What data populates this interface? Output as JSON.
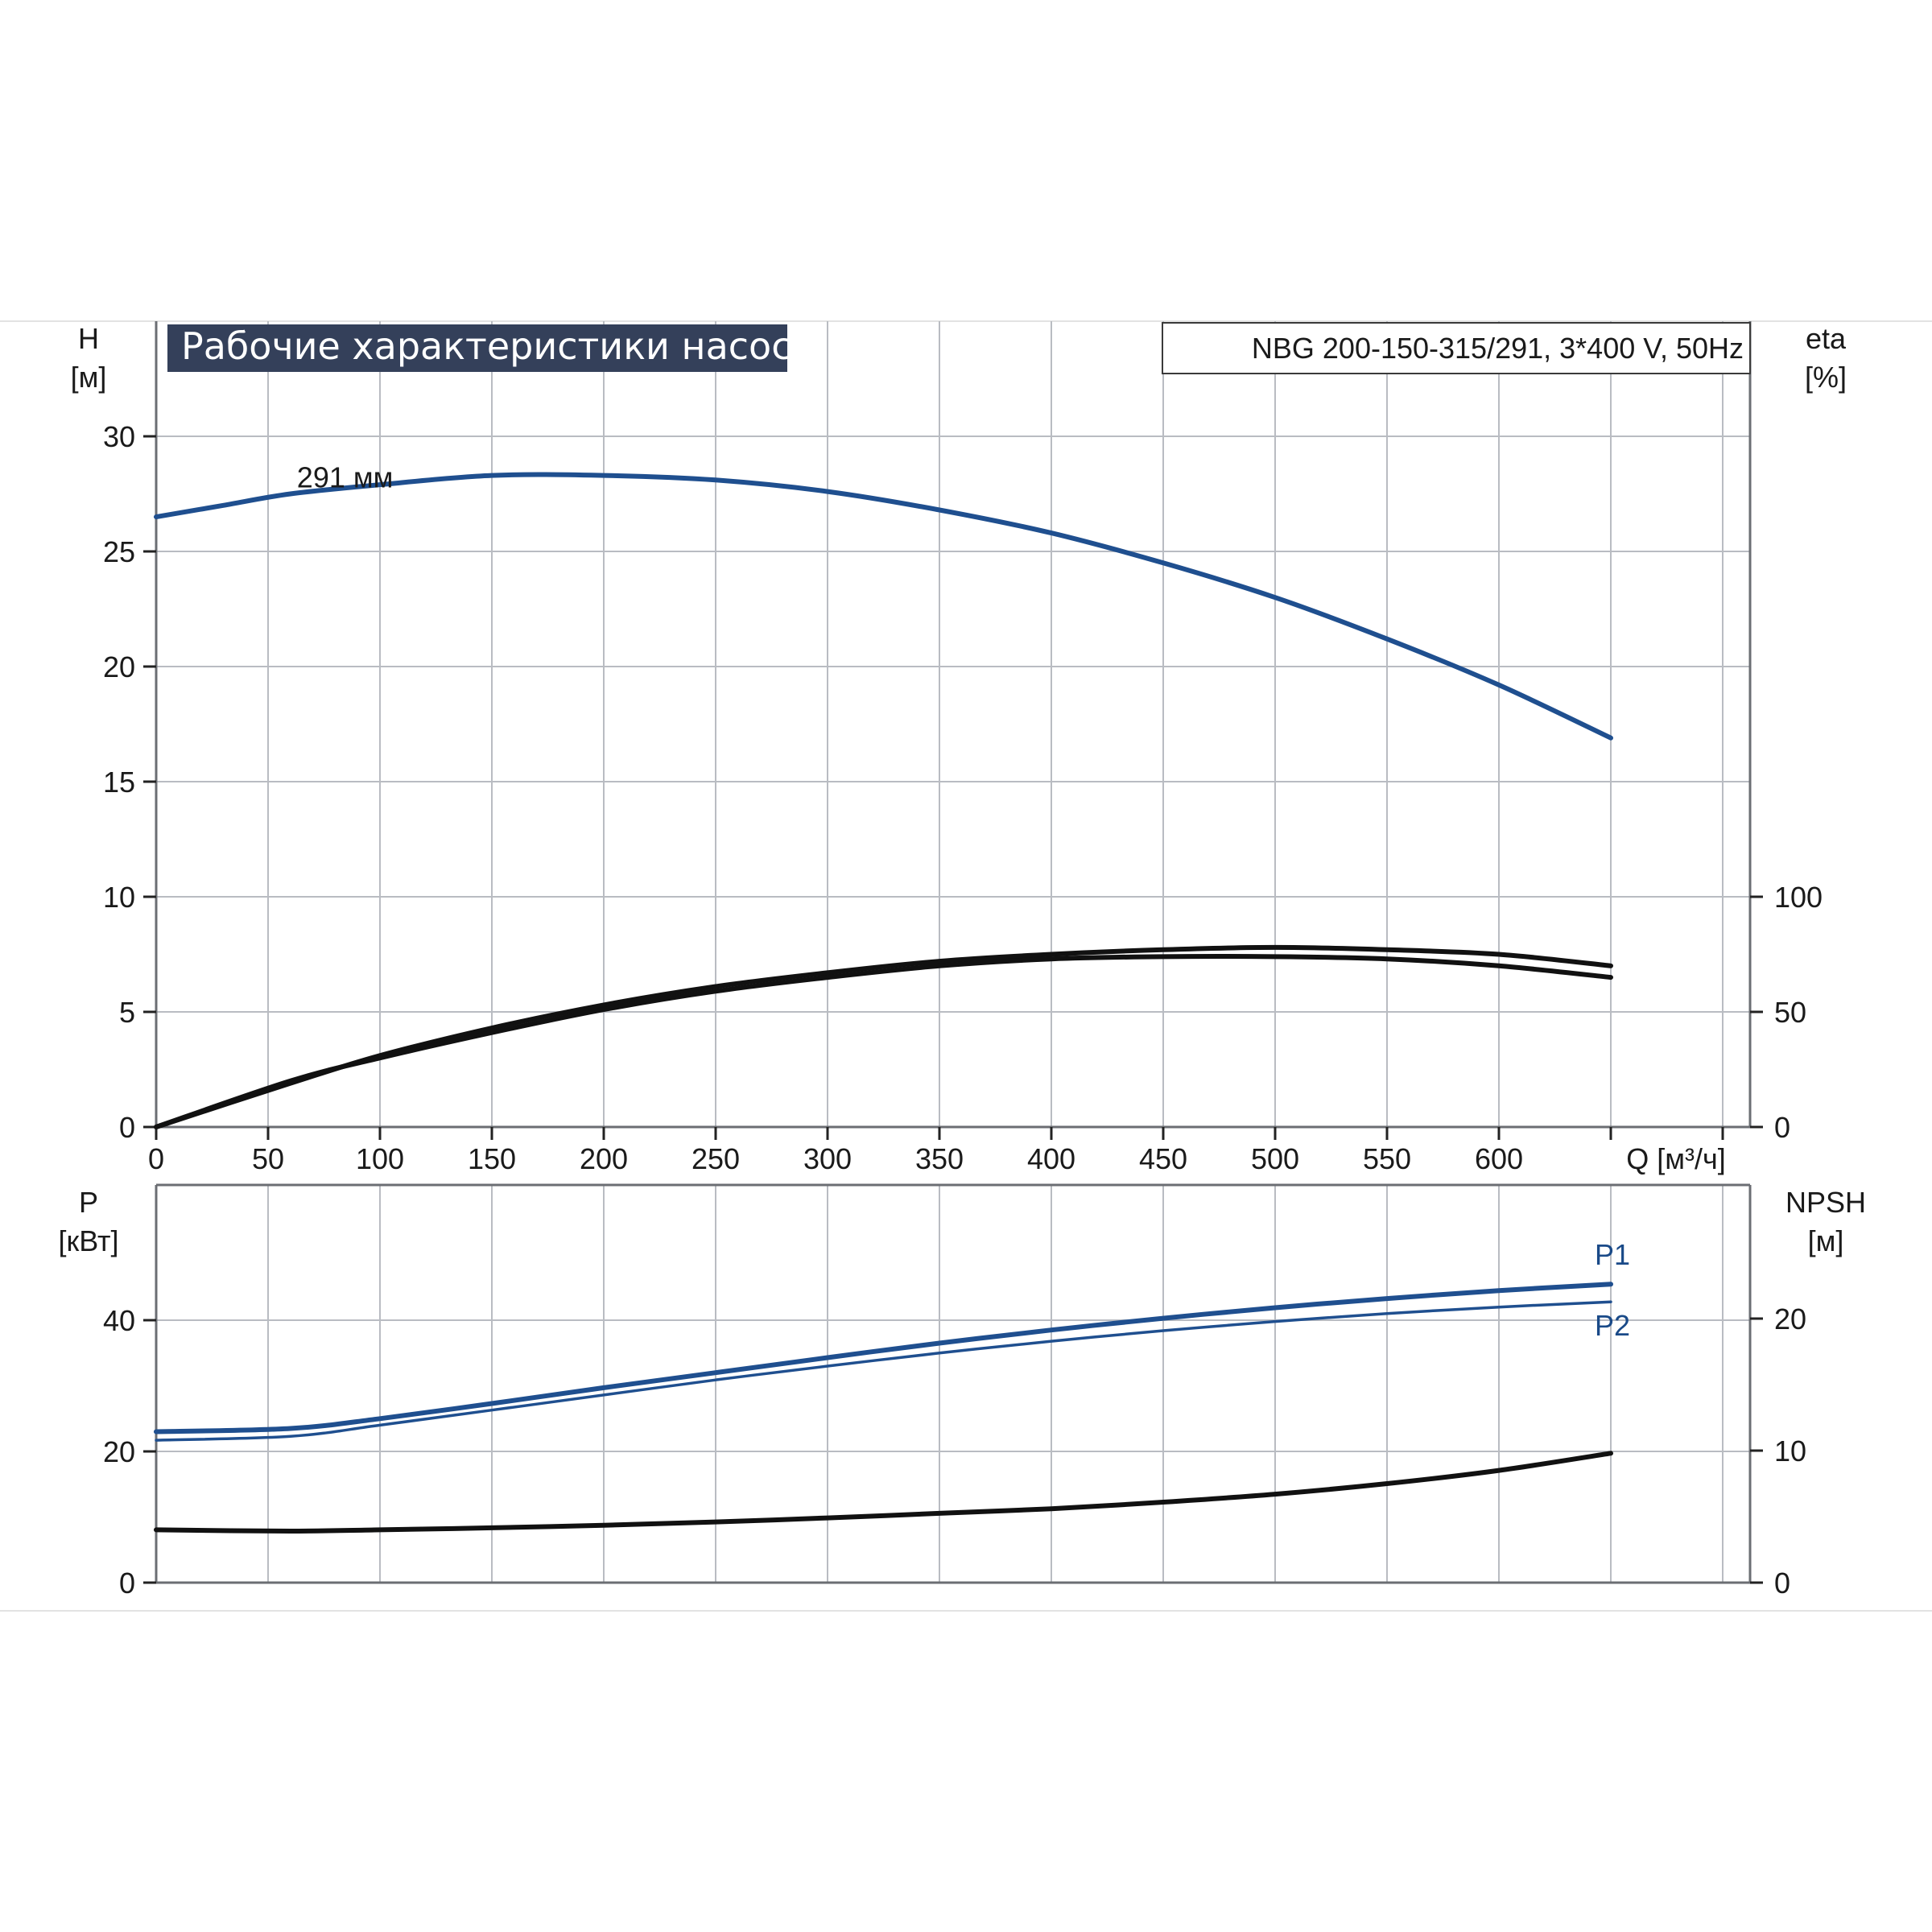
{
  "title": "Рабочие характеристики насоса",
  "model": "NBG 200-150-315/291, 3*400 V, 50Hz",
  "colors": {
    "blue": "#1f4f8f",
    "black": "#111111",
    "title_bg": "#34405a"
  },
  "chart_data": [
    {
      "type": "line",
      "name": "upper",
      "x_ticks": [
        "0",
        "50",
        "100",
        "150",
        "200",
        "250",
        "300",
        "350",
        "400",
        "450",
        "500",
        "550",
        "600"
      ],
      "x_label": "Q [м³/ч]",
      "xlim": [
        0,
        710
      ],
      "y_left": {
        "label_top": "H",
        "label_bottom": "[м]",
        "ticks": [
          "0",
          "5",
          "10",
          "15",
          "20",
          "25",
          "30"
        ],
        "lim": [
          0,
          35
        ]
      },
      "y_right": {
        "label_top": "eta",
        "label_bottom": "[%]",
        "ticks": [
          "0",
          "50",
          "100"
        ],
        "ticks_values": [
          0,
          50,
          100
        ],
        "lim": [
          0,
          350
        ]
      },
      "series": [
        {
          "name": "291 мм",
          "axis": "left",
          "color": "#1f4f8f",
          "x": [
            0,
            30,
            60,
            100,
            150,
            200,
            250,
            300,
            350,
            400,
            450,
            500,
            550,
            600,
            650
          ],
          "y": [
            26.5,
            27.0,
            27.5,
            27.9,
            28.3,
            28.3,
            28.1,
            27.6,
            26.8,
            25.8,
            24.5,
            23.0,
            21.2,
            19.2,
            16.9
          ]
        },
        {
          "name": "",
          "axis": "right",
          "color": "#111111",
          "x": [
            0,
            60,
            100,
            150,
            200,
            250,
            300,
            350,
            400,
            450,
            500,
            550,
            600,
            650
          ],
          "y": [
            0,
            19,
            31,
            43,
            53,
            61,
            67,
            72,
            75,
            77,
            78,
            77,
            75,
            70
          ]
        },
        {
          "name": "",
          "axis": "right",
          "color": "#111111",
          "x": [
            0,
            60,
            100,
            150,
            200,
            250,
            300,
            350,
            400,
            450,
            500,
            550,
            600,
            650
          ],
          "y": [
            0,
            20,
            30,
            41,
            51,
            59,
            65,
            70,
            73,
            74,
            74,
            73,
            70,
            65
          ]
        }
      ]
    },
    {
      "type": "line",
      "name": "lower",
      "xlim": [
        0,
        710
      ],
      "y_left": {
        "label_top": "P",
        "label_bottom": "[кВт]",
        "ticks": [
          "0",
          "20",
          "40"
        ],
        "lim": [
          0,
          60
        ]
      },
      "y_right": {
        "label_top": "NPSH",
        "label_bottom": "[м]",
        "ticks": [
          "0",
          "10",
          "20"
        ],
        "ticks_values": [
          0,
          10,
          20
        ],
        "lim": [
          0,
          30
        ]
      },
      "series": [
        {
          "name": "P1",
          "axis": "left",
          "color": "#1f4f8f",
          "x": [
            0,
            60,
            100,
            150,
            200,
            250,
            300,
            350,
            400,
            450,
            500,
            550,
            600,
            650
          ],
          "y": [
            23.0,
            23.5,
            25.0,
            27.3,
            29.7,
            32.0,
            34.3,
            36.5,
            38.5,
            40.3,
            41.9,
            43.3,
            44.5,
            45.5
          ]
        },
        {
          "name": "P2",
          "axis": "left",
          "color": "#1f4f8f",
          "x": [
            0,
            60,
            100,
            150,
            200,
            250,
            300,
            350,
            400,
            450,
            500,
            550,
            600,
            650
          ],
          "y": [
            21.7,
            22.3,
            24.0,
            26.3,
            28.6,
            30.9,
            33.0,
            35.0,
            36.8,
            38.4,
            39.8,
            41.0,
            42.0,
            42.8
          ]
        },
        {
          "name": "",
          "axis": "right",
          "color": "#111111",
          "x": [
            0,
            60,
            100,
            150,
            200,
            250,
            300,
            350,
            400,
            450,
            500,
            550,
            600,
            650
          ],
          "y": [
            4.0,
            3.9,
            4.0,
            4.15,
            4.35,
            4.6,
            4.9,
            5.25,
            5.6,
            6.1,
            6.7,
            7.5,
            8.5,
            9.8
          ]
        }
      ]
    }
  ]
}
